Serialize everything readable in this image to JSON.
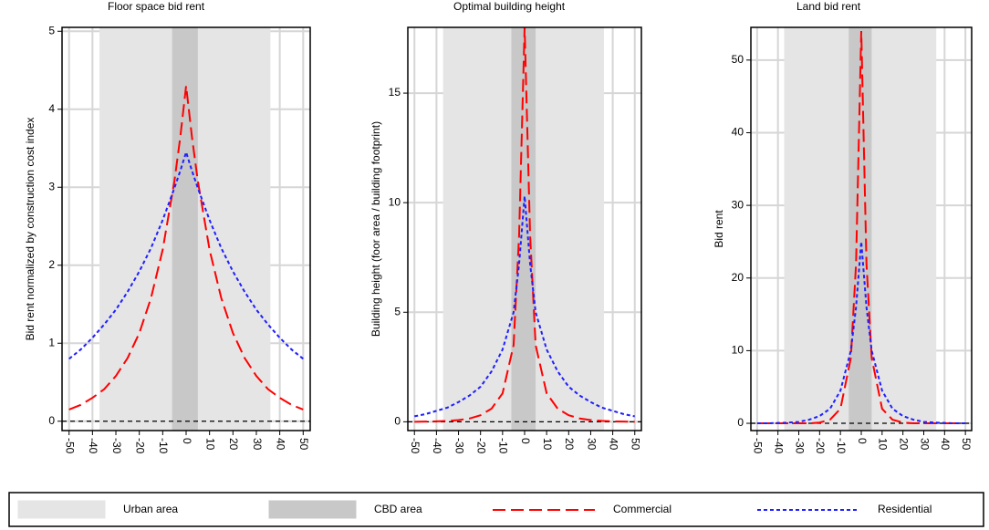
{
  "chart_data": [
    {
      "type": "line",
      "title": "Floor space bid rent",
      "ylabel": "Bid rent normalized by construction cost index",
      "x": [
        -50,
        -45,
        -40,
        -35,
        -30,
        -25,
        -20,
        -15,
        -10,
        -5,
        -2.5,
        0,
        2.5,
        5,
        10,
        15,
        20,
        25,
        30,
        35,
        40,
        45,
        50
      ],
      "series": [
        {
          "name": "Commercial",
          "color": "#ff0000",
          "dash": "long",
          "values": [
            0.15,
            0.21,
            0.3,
            0.41,
            0.58,
            0.81,
            1.13,
            1.58,
            2.2,
            3.08,
            3.64,
            4.3,
            3.64,
            3.08,
            2.2,
            1.58,
            1.13,
            0.81,
            0.58,
            0.41,
            0.3,
            0.21,
            0.15
          ]
        },
        {
          "name": "Residential",
          "color": "#1f1fff",
          "dash": "dotted",
          "values": [
            0.8,
            0.92,
            1.07,
            1.24,
            1.43,
            1.66,
            1.92,
            2.22,
            2.58,
            2.99,
            3.21,
            3.45,
            3.21,
            2.99,
            2.58,
            2.22,
            1.92,
            1.66,
            1.43,
            1.24,
            1.07,
            0.92,
            0.8
          ]
        }
      ],
      "regions": [
        {
          "name": "Urban area",
          "range": [
            -37,
            36
          ],
          "color": "#e5e5e5"
        },
        {
          "name": "CBD area",
          "range": [
            -6,
            5
          ],
          "color": "#c8c8c8"
        }
      ],
      "hline": 0,
      "xlim": [
        -53,
        53
      ],
      "xticks": [
        -50,
        -40,
        -30,
        -20,
        -10,
        0,
        10,
        20,
        30,
        40,
        50
      ],
      "ylim": [
        -0.12,
        5.05
      ],
      "yticks": [
        0,
        1,
        2,
        3,
        4,
        5
      ],
      "grid": true
    },
    {
      "type": "line",
      "title": "Optimal building height",
      "ylabel": "Building height (foor area / building footprint)",
      "x": [
        -50,
        -45,
        -40,
        -35,
        -30,
        -25,
        -20,
        -15,
        -10,
        -5,
        -2.5,
        0,
        2.5,
        5,
        10,
        15,
        20,
        25,
        30,
        35,
        40,
        45,
        50
      ],
      "series": [
        {
          "name": "Commercial",
          "color": "#ff0000",
          "dash": "long",
          "values": [
            0,
            0.01,
            0.02,
            0.04,
            0.08,
            0.15,
            0.3,
            0.6,
            1.3,
            3.5,
            8.5,
            18,
            8.5,
            3.5,
            1.3,
            0.6,
            0.3,
            0.15,
            0.08,
            0.04,
            0.02,
            0.01,
            0
          ]
        },
        {
          "name": "Residential",
          "color": "#1f1fff",
          "dash": "dotted",
          "values": [
            0.25,
            0.35,
            0.5,
            0.65,
            0.9,
            1.2,
            1.6,
            2.3,
            3.3,
            5,
            7.2,
            10.3,
            7.2,
            5,
            3.3,
            2.3,
            1.6,
            1.2,
            0.9,
            0.65,
            0.5,
            0.35,
            0.25
          ]
        }
      ],
      "regions": [
        {
          "name": "Urban area",
          "range": [
            -37,
            36
          ],
          "color": "#e5e5e5"
        },
        {
          "name": "CBD area",
          "range": [
            -6,
            5
          ],
          "color": "#c8c8c8"
        }
      ],
      "hline": 0,
      "xlim": [
        -53,
        53
      ],
      "xticks": [
        -50,
        -40,
        -30,
        -20,
        -10,
        0,
        10,
        20,
        30,
        40,
        50
      ],
      "ylim": [
        -0.4,
        18
      ],
      "yticks": [
        0,
        5,
        10,
        15
      ],
      "grid": true
    },
    {
      "type": "line",
      "title": "Land bid rent",
      "ylabel": "Bid rent",
      "x": [
        -50,
        -45,
        -40,
        -35,
        -30,
        -25,
        -20,
        -15,
        -10,
        -5,
        -2.5,
        0,
        2.5,
        5,
        10,
        15,
        20,
        25,
        30,
        35,
        40,
        45,
        50
      ],
      "series": [
        {
          "name": "Commercial",
          "color": "#ff0000",
          "dash": "long",
          "values": [
            0,
            0,
            0,
            0,
            0,
            0,
            0.1,
            0.5,
            2,
            9,
            22,
            54,
            22,
            9,
            2,
            0.5,
            0.1,
            0,
            0,
            0,
            0,
            0,
            0
          ]
        },
        {
          "name": "Residential",
          "color": "#1f1fff",
          "dash": "dotted",
          "values": [
            0,
            0,
            0.05,
            0.1,
            0.2,
            0.5,
            1,
            2,
            4.5,
            10,
            16,
            25,
            16,
            10,
            4.5,
            2,
            1,
            0.5,
            0.2,
            0.1,
            0.05,
            0,
            0
          ]
        }
      ],
      "regions": [
        {
          "name": "Urban area",
          "range": [
            -37,
            36
          ],
          "color": "#e5e5e5"
        },
        {
          "name": "CBD area",
          "range": [
            -6,
            5
          ],
          "color": "#c8c8c8"
        }
      ],
      "hline": 0,
      "xlim": [
        -53,
        53
      ],
      "xticks": [
        -50,
        -40,
        -30,
        -20,
        -10,
        0,
        10,
        20,
        30,
        40,
        50
      ],
      "ylim": [
        -1,
        54.5
      ],
      "yticks": [
        0,
        10,
        20,
        30,
        40,
        50
      ],
      "grid": true
    }
  ]
}
